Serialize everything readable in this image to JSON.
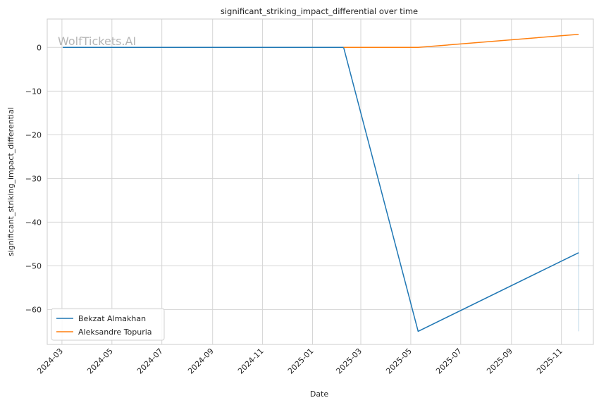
{
  "chart_data": {
    "type": "line",
    "title": "significant_striking_impact_differential over time",
    "xlabel": "Date",
    "ylabel": "significant_striking_impact_differential",
    "x_tick_labels": [
      "2024-03",
      "2024-05",
      "2024-07",
      "2024-09",
      "2024-11",
      "2025-01",
      "2025-03",
      "2025-05",
      "2025-07",
      "2025-09",
      "2025-11"
    ],
    "x_ticks": [
      "2024-03-01",
      "2024-05-01",
      "2024-07-01",
      "2024-09-01",
      "2024-11-01",
      "2025-01-01",
      "2025-03-01",
      "2025-05-01",
      "2025-07-01",
      "2025-09-01",
      "2025-11-01"
    ],
    "xlim": [
      "2024-02-12",
      "2025-12-10"
    ],
    "y_ticks": [
      0,
      -10,
      -20,
      -30,
      -40,
      -50,
      -60
    ],
    "ylim": [
      -68,
      6.5
    ],
    "grid": true,
    "legend_position": "lower-left",
    "watermark": "WolfTickets.AI",
    "series": [
      {
        "name": "Bekzat Almakhan",
        "color": "#1f77b4",
        "points": [
          {
            "x": "2024-03-02",
            "y": 0
          },
          {
            "x": "2025-02-08",
            "y": 0
          },
          {
            "x": "2025-05-10",
            "y": -65
          },
          {
            "x": "2025-11-22",
            "y": -47
          }
        ]
      },
      {
        "name": "Aleksandre Topuria",
        "color": "#ff7f0e",
        "points": [
          {
            "x": "2025-02-08",
            "y": 0
          },
          {
            "x": "2025-05-10",
            "y": 0
          },
          {
            "x": "2025-11-22",
            "y": 3
          }
        ]
      }
    ],
    "annotations": [
      {
        "type": "vertical-band",
        "x": "2025-11-22",
        "y_range": [
          -65,
          -29
        ],
        "color": "#1f77b4"
      }
    ]
  }
}
